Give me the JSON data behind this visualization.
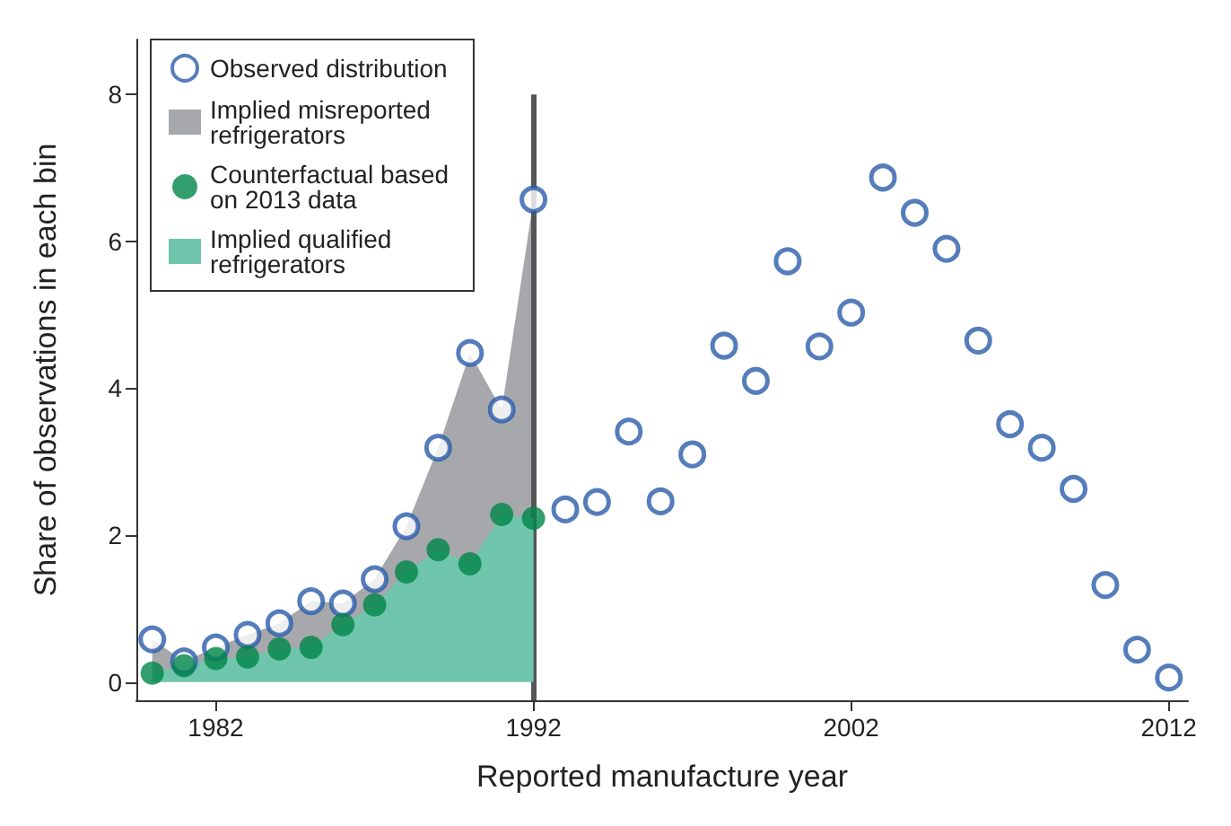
{
  "chart_data": {
    "type": "scatter",
    "xlabel": "Reported manufacture year",
    "ylabel": "Share of observations in each bin",
    "xlim": [
      1979.5,
      2012.6
    ],
    "xticks": [
      1982,
      1992,
      2002,
      2012
    ],
    "ylim": [
      -0.25,
      8.75
    ],
    "yticks": [
      0,
      2,
      4,
      6,
      8
    ],
    "grid": false,
    "legend": "top left",
    "ref_lines": [
      {
        "axis": "x",
        "value": 1992,
        "color": "#555555"
      }
    ],
    "series": [
      {
        "name": "Observed distribution",
        "marker": "circle",
        "color": "#2a5caa",
        "x": [
          1980,
          1981,
          1982,
          1983,
          1984,
          1985,
          1986,
          1987,
          1988,
          1989,
          1990,
          1991,
          1992,
          1993,
          1994,
          1995,
          1996,
          1997,
          1998,
          1999,
          2000,
          2001,
          2002,
          2003,
          2004,
          2005,
          2006,
          2007,
          2008,
          2009,
          2010,
          2011,
          2012
        ],
        "values": [
          0.58,
          0.28,
          0.47,
          0.64,
          0.8,
          1.1,
          1.07,
          1.4,
          2.12,
          3.19,
          4.48,
          3.71,
          6.57,
          2.35,
          2.45,
          3.41,
          2.46,
          3.1,
          4.58,
          4.1,
          5.73,
          4.57,
          5.03,
          6.87,
          6.39,
          5.9,
          4.65,
          3.51,
          3.19,
          2.63,
          1.32,
          0.44,
          0.06
        ]
      },
      {
        "name": "Implied misreported refrigerators",
        "type": "area",
        "color": "#a7a8ab",
        "x": [
          1980,
          1981,
          1982,
          1983,
          1984,
          1985,
          1986,
          1987,
          1988,
          1989,
          1990,
          1991,
          1992
        ],
        "values": [
          0.58,
          0.28,
          0.47,
          0.64,
          0.8,
          1.1,
          1.07,
          1.4,
          2.12,
          3.19,
          4.48,
          3.71,
          6.57
        ]
      },
      {
        "name": "Counterfactual based on 2013 data",
        "marker": "circle",
        "color": "#00864a",
        "x": [
          1980,
          1981,
          1982,
          1983,
          1984,
          1985,
          1986,
          1987,
          1988,
          1989,
          1990,
          1991,
          1992
        ],
        "values": [
          0.12,
          0.22,
          0.32,
          0.34,
          0.45,
          0.47,
          0.78,
          1.05,
          1.5,
          1.8,
          1.61,
          2.28,
          2.23
        ]
      },
      {
        "name": "Implied qualified refrigerators",
        "type": "area",
        "color": "#6fc6ac",
        "x": [
          1980,
          1981,
          1982,
          1983,
          1984,
          1985,
          1986,
          1987,
          1988,
          1989,
          1990,
          1991,
          1992
        ],
        "values": [
          0.12,
          0.22,
          0.32,
          0.34,
          0.45,
          0.47,
          0.78,
          1.05,
          1.5,
          1.8,
          1.61,
          2.28,
          2.23
        ]
      }
    ]
  }
}
